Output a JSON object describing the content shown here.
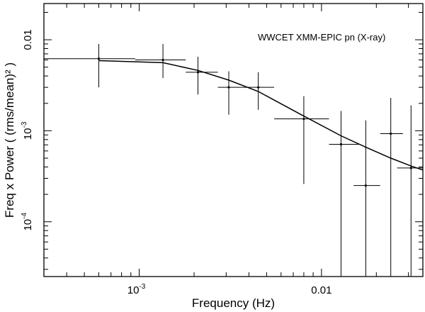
{
  "chart_data": {
    "type": "scatter",
    "xscale": "log",
    "yscale": "log",
    "xlim": [
      0.0003,
      0.036
    ],
    "ylim": [
      2.5e-05,
      0.025
    ],
    "xlabel": "Frequency (Hz)",
    "ylabel": "Freq x Power ( (rms/mean)² )",
    "annotation": "WWCET   XMM-EPIC pn (X-ray)",
    "grid": false,
    "x_ticks": [
      {
        "value": 0.001,
        "label_base": "10",
        "label_exp": "-3"
      },
      {
        "value": 0.01,
        "label_base": "0.01",
        "label_exp": ""
      }
    ],
    "y_ticks": [
      {
        "value": 0.01,
        "label_base": "0.01",
        "label_exp": ""
      },
      {
        "value": 0.001,
        "label_base": "10",
        "label_exp": "-3"
      },
      {
        "value": 0.0001,
        "label_base": "10",
        "label_exp": "-4"
      }
    ],
    "series": [
      {
        "kind": "errorbar",
        "points": [
          {
            "x": 0.0006,
            "y": 0.0062,
            "xlo": 0.0003,
            "xhi": 0.00095,
            "ylo": 0.003,
            "yhi": 0.009
          },
          {
            "x": 0.00135,
            "y": 0.006,
            "xlo": 0.00095,
            "xhi": 0.0018,
            "ylo": 0.0038,
            "yhi": 0.009
          },
          {
            "x": 0.0021,
            "y": 0.0044,
            "xlo": 0.0018,
            "xhi": 0.0027,
            "ylo": 0.0025,
            "yhi": 0.0065
          },
          {
            "x": 0.0031,
            "y": 0.003,
            "xlo": 0.0027,
            "xhi": 0.0036,
            "ylo": 0.0015,
            "yhi": 0.0045
          },
          {
            "x": 0.0045,
            "y": 0.003,
            "xlo": 0.0036,
            "xhi": 0.0055,
            "ylo": 0.0017,
            "yhi": 0.0044
          },
          {
            "x": 0.008,
            "y": 0.00135,
            "xlo": 0.0055,
            "xhi": 0.011,
            "ylo": 0.00026,
            "yhi": 0.0024
          },
          {
            "x": 0.0128,
            "y": 0.00071,
            "xlo": 0.011,
            "xhi": 0.016,
            "ylo": 2.5e-05,
            "yhi": 0.00165
          },
          {
            "x": 0.0175,
            "y": 0.00025,
            "xlo": 0.015,
            "xhi": 0.021,
            "ylo": 2.5e-05,
            "yhi": 0.0013
          },
          {
            "x": 0.024,
            "y": 0.00093,
            "xlo": 0.021,
            "xhi": 0.028,
            "ylo": 2.5e-05,
            "yhi": 0.0023
          },
          {
            "x": 0.031,
            "y": 0.00039,
            "xlo": 0.026,
            "xhi": 0.036,
            "ylo": 2.5e-05,
            "yhi": 0.0019
          }
        ]
      },
      {
        "kind": "line",
        "points": [
          {
            "x": 0.0006,
            "y": 0.0059
          },
          {
            "x": 0.00135,
            "y": 0.0056
          },
          {
            "x": 0.0021,
            "y": 0.0046
          },
          {
            "x": 0.0031,
            "y": 0.0036
          },
          {
            "x": 0.0045,
            "y": 0.0027
          },
          {
            "x": 0.008,
            "y": 0.00145
          },
          {
            "x": 0.0128,
            "y": 0.00088
          },
          {
            "x": 0.0175,
            "y": 0.00066
          },
          {
            "x": 0.024,
            "y": 0.0005
          },
          {
            "x": 0.031,
            "y": 0.00041
          },
          {
            "x": 0.036,
            "y": 0.00037
          }
        ]
      }
    ]
  }
}
